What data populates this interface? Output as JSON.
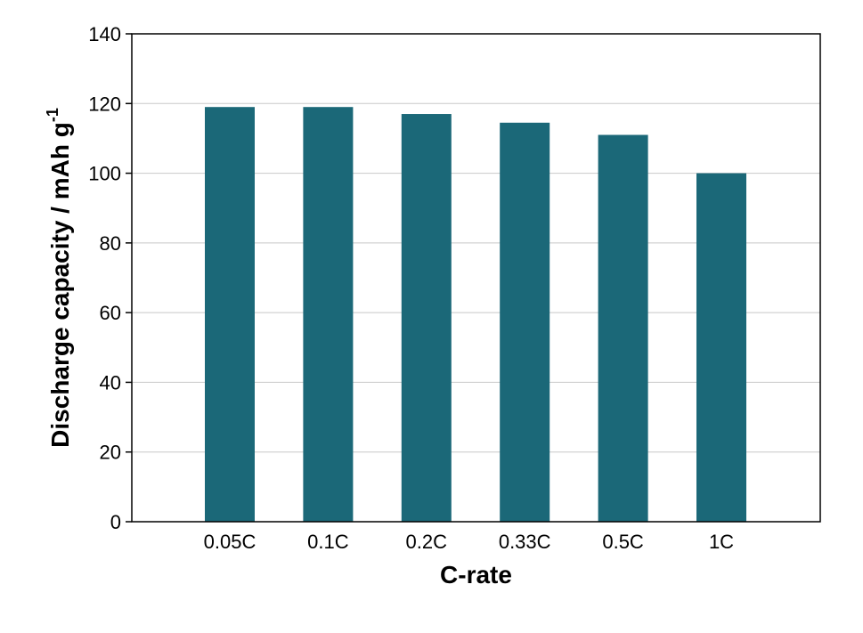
{
  "chart_data": {
    "type": "bar",
    "title": "",
    "xlabel": "C-rate",
    "ylabel": "Discharge capacity / mAh g",
    "ylabel_superscript": "-1",
    "categories": [
      "0.05C",
      "0.1C",
      "0.2C",
      "0.33C",
      "0.5C",
      "1C"
    ],
    "values": [
      119,
      119,
      117,
      114.5,
      111,
      100
    ],
    "ylim": [
      0,
      140
    ],
    "yticks": [
      0,
      20,
      40,
      60,
      80,
      100,
      120,
      140
    ],
    "grid": "horizontal",
    "legend": "none",
    "bar_color": "#1b6878"
  }
}
